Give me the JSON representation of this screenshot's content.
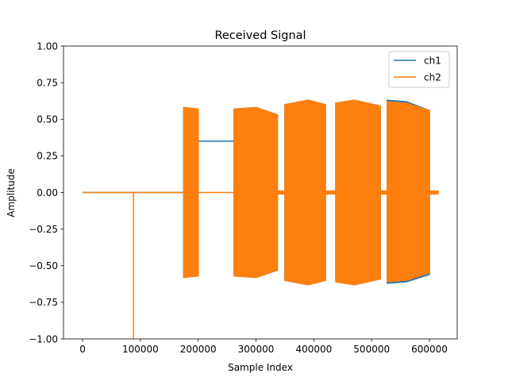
{
  "chart_data": {
    "type": "line",
    "title": "Received Signal",
    "xlabel": "Sample Index",
    "ylabel": "Amplitude",
    "xlim": [
      -33000,
      648000
    ],
    "ylim": [
      -1.0,
      1.0
    ],
    "xticks": [
      0,
      100000,
      200000,
      300000,
      400000,
      500000,
      600000
    ],
    "xtick_labels": [
      "0",
      "100000",
      "200000",
      "300000",
      "400000",
      "500000",
      "600000"
    ],
    "yticks": [
      -1.0,
      -0.75,
      -0.5,
      -0.25,
      0.0,
      0.25,
      0.5,
      0.75,
      1.0
    ],
    "ytick_labels": [
      "−1.00",
      "−0.75",
      "−0.50",
      "−0.25",
      "0.00",
      "0.25",
      "0.50",
      "0.75",
      "1.00"
    ],
    "grid": false,
    "legend_position": "top-right",
    "series": [
      {
        "name": "ch1",
        "color": "#1f77b4",
        "segments": [
          {
            "kind": "line",
            "points": [
              [
                0,
                0.0
              ],
              [
                175000,
                0.0
              ]
            ]
          },
          {
            "kind": "band",
            "x": [
              175000,
              200000
            ],
            "upper": [
              0.58,
              0.57
            ],
            "lower": [
              -0.58,
              -0.57
            ]
          },
          {
            "kind": "line",
            "points": [
              [
                200000,
                0.35
              ],
              [
                262000,
                0.35
              ]
            ]
          },
          {
            "kind": "band",
            "x": [
              262000,
              300000,
              337000
            ],
            "upper": [
              0.57,
              0.58,
              0.53
            ],
            "lower": [
              -0.57,
              -0.58,
              -0.53
            ]
          },
          {
            "kind": "band",
            "x": [
              350000,
              390000,
              420000
            ],
            "upper": [
              0.6,
              0.63,
              0.6
            ],
            "lower": [
              -0.6,
              -0.63,
              -0.6
            ]
          },
          {
            "kind": "band",
            "x": [
              438000,
              470000,
              515000
            ],
            "upper": [
              0.61,
              0.63,
              0.59
            ],
            "lower": [
              -0.61,
              -0.63,
              -0.59
            ]
          },
          {
            "kind": "band",
            "x": [
              527000,
              560000,
              600000
            ],
            "upper": [
              0.63,
              0.62,
              0.56
            ],
            "lower": [
              -0.62,
              -0.61,
              -0.56
            ]
          },
          {
            "kind": "line",
            "points": [
              [
                600000,
                0.0
              ],
              [
                615000,
                0.0
              ]
            ]
          }
        ]
      },
      {
        "name": "ch2",
        "color": "#ff7f0e",
        "segments": [
          {
            "kind": "line",
            "points": [
              [
                0,
                0.0
              ],
              [
                88000,
                0.0
              ],
              [
                88000,
                -1.0
              ],
              [
                88000,
                0.0
              ],
              [
                175000,
                0.0
              ]
            ]
          },
          {
            "kind": "band",
            "x": [
              175000,
              200000
            ],
            "upper": [
              0.58,
              0.57
            ],
            "lower": [
              -0.58,
              -0.57
            ]
          },
          {
            "kind": "line",
            "points": [
              [
                200000,
                0.0
              ],
              [
                262000,
                0.0
              ]
            ]
          },
          {
            "kind": "band",
            "x": [
              262000,
              300000,
              337000
            ],
            "upper": [
              0.57,
              0.58,
              0.53
            ],
            "lower": [
              -0.57,
              -0.58,
              -0.53
            ]
          },
          {
            "kind": "band",
            "x": [
              337000,
              350000
            ],
            "upper": [
              0.01,
              0.01
            ],
            "lower": [
              -0.01,
              -0.01
            ]
          },
          {
            "kind": "band",
            "x": [
              350000,
              390000,
              420000
            ],
            "upper": [
              0.6,
              0.63,
              0.6
            ],
            "lower": [
              -0.6,
              -0.63,
              -0.6
            ]
          },
          {
            "kind": "band",
            "x": [
              420000,
              438000
            ],
            "upper": [
              0.01,
              0.01
            ],
            "lower": [
              -0.01,
              -0.01
            ]
          },
          {
            "kind": "band",
            "x": [
              438000,
              470000,
              515000
            ],
            "upper": [
              0.61,
              0.63,
              0.59
            ],
            "lower": [
              -0.61,
              -0.63,
              -0.59
            ]
          },
          {
            "kind": "band",
            "x": [
              515000,
              527000
            ],
            "upper": [
              0.01,
              0.01
            ],
            "lower": [
              -0.01,
              -0.01
            ]
          },
          {
            "kind": "band",
            "x": [
              527000,
              560000,
              600000
            ],
            "upper": [
              0.62,
              0.61,
              0.56
            ],
            "lower": [
              -0.61,
              -0.6,
              -0.55
            ]
          },
          {
            "kind": "band",
            "x": [
              600000,
              615000
            ],
            "upper": [
              0.01,
              0.01
            ],
            "lower": [
              -0.01,
              -0.01
            ]
          }
        ]
      }
    ]
  }
}
